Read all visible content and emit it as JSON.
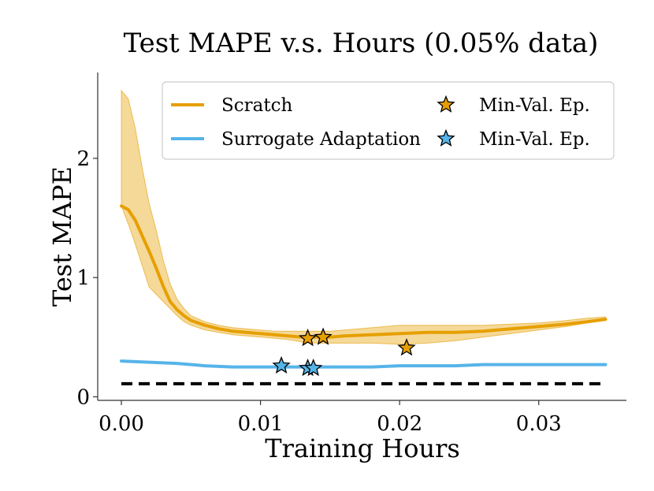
{
  "chart_data": {
    "type": "line",
    "title": "Test MAPE v.s. Hours (0.05% data)",
    "xlabel": "Training Hours",
    "ylabel": "Test MAPE",
    "xlim": [
      -0.0017,
      0.0363
    ],
    "ylim": [
      -0.03,
      2.72
    ],
    "xticks": [
      {
        "value": 0.0,
        "label": "0.00"
      },
      {
        "value": 0.01,
        "label": "0.01"
      },
      {
        "value": 0.02,
        "label": "0.02"
      },
      {
        "value": 0.03,
        "label": "0.03"
      }
    ],
    "yticks": [
      {
        "value": 0,
        "label": "0"
      },
      {
        "value": 1,
        "label": "1"
      },
      {
        "value": 2,
        "label": "2"
      }
    ],
    "series": [
      {
        "name": "Scratch",
        "color": "#E69F00",
        "x": [
          0.0,
          0.0005,
          0.001,
          0.0015,
          0.002,
          0.0025,
          0.003,
          0.0035,
          0.004,
          0.0045,
          0.005,
          0.006,
          0.007,
          0.008,
          0.009,
          0.01,
          0.011,
          0.012,
          0.013,
          0.014,
          0.015,
          0.016,
          0.018,
          0.02,
          0.022,
          0.024,
          0.026,
          0.028,
          0.03,
          0.032,
          0.0335,
          0.0348
        ],
        "y": [
          1.6,
          1.57,
          1.48,
          1.35,
          1.22,
          1.08,
          0.93,
          0.8,
          0.73,
          0.68,
          0.64,
          0.6,
          0.57,
          0.55,
          0.54,
          0.53,
          0.52,
          0.51,
          0.5,
          0.5,
          0.5,
          0.51,
          0.52,
          0.53,
          0.54,
          0.54,
          0.55,
          0.57,
          0.59,
          0.61,
          0.63,
          0.65
        ],
        "lower": [
          1.6,
          1.45,
          1.28,
          1.1,
          0.92,
          0.86,
          0.8,
          0.74,
          0.68,
          0.63,
          0.6,
          0.56,
          0.54,
          0.52,
          0.51,
          0.5,
          0.49,
          0.48,
          0.46,
          0.45,
          0.45,
          0.45,
          0.45,
          0.44,
          0.45,
          0.47,
          0.5,
          0.53,
          0.56,
          0.59,
          0.62,
          0.64
        ],
        "upper": [
          2.57,
          2.5,
          2.25,
          1.92,
          1.62,
          1.4,
          1.15,
          0.95,
          0.82,
          0.74,
          0.68,
          0.63,
          0.6,
          0.58,
          0.57,
          0.56,
          0.55,
          0.55,
          0.55,
          0.55,
          0.55,
          0.56,
          0.58,
          0.6,
          0.6,
          0.6,
          0.6,
          0.61,
          0.62,
          0.64,
          0.66,
          0.67
        ]
      },
      {
        "name": "Surrogate Adaptation",
        "color": "#56B4E9",
        "x": [
          0.0,
          0.002,
          0.004,
          0.006,
          0.008,
          0.01,
          0.012,
          0.014,
          0.016,
          0.018,
          0.02,
          0.022,
          0.024,
          0.026,
          0.028,
          0.03,
          0.032,
          0.0348
        ],
        "y": [
          0.3,
          0.29,
          0.28,
          0.26,
          0.25,
          0.25,
          0.25,
          0.25,
          0.25,
          0.25,
          0.26,
          0.26,
          0.26,
          0.27,
          0.27,
          0.27,
          0.27,
          0.27
        ]
      }
    ],
    "min_val_markers": [
      {
        "series": "Scratch",
        "x": 0.0134,
        "y": 0.49
      },
      {
        "series": "Scratch",
        "x": 0.0145,
        "y": 0.5
      },
      {
        "series": "Scratch",
        "x": 0.0205,
        "y": 0.41
      },
      {
        "series": "Surrogate Adaptation",
        "x": 0.0115,
        "y": 0.26
      },
      {
        "series": "Surrogate Adaptation",
        "x": 0.0134,
        "y": 0.24
      },
      {
        "series": "Surrogate Adaptation",
        "x": 0.0138,
        "y": 0.24
      }
    ],
    "baseline": {
      "y": 0.11,
      "x_start": 0.0,
      "x_end": 0.0348,
      "style": "dashed",
      "color": "#000000"
    },
    "legend": {
      "position": "top-right",
      "entries": [
        {
          "label": "Scratch",
          "kind": "line",
          "color": "#E69F00"
        },
        {
          "label": "Min-Val. Ep.",
          "kind": "star",
          "color": "#E69F00"
        },
        {
          "label": "Surrogate Adaptation",
          "kind": "line",
          "color": "#56B4E9"
        },
        {
          "label": "Min-Val. Ep.",
          "kind": "star",
          "color": "#56B4E9"
        }
      ]
    },
    "grid": false
  }
}
